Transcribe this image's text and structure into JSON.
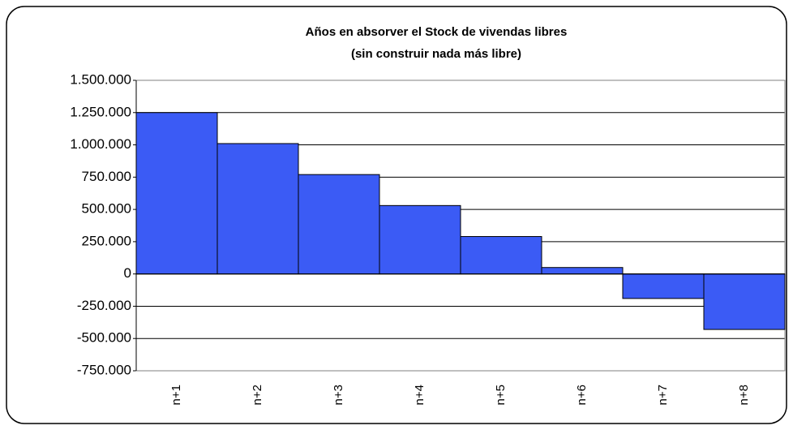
{
  "chart_data": {
    "type": "bar",
    "title": "Años en absorver el Stock de vivendas libres",
    "subtitle": "(sin construir nada más libre)",
    "categories": [
      "n+1",
      "n+2",
      "n+3",
      "n+4",
      "n+5",
      "n+6",
      "n+7",
      "n+8"
    ],
    "values": [
      1250000,
      1010000,
      770000,
      530000,
      290000,
      50000,
      -190000,
      -430000
    ],
    "color": "#3b5bf5",
    "ylim": [
      -750000,
      1500000
    ],
    "yticks": [
      {
        "value": -750000,
        "label": "-750.000"
      },
      {
        "value": -500000,
        "label": "-500.000"
      },
      {
        "value": -250000,
        "label": "-250.000"
      },
      0,
      {
        "value": 250000,
        "label": "250.000"
      },
      {
        "value": 500000,
        "label": "500.000"
      },
      {
        "value": 750000,
        "label": "750.000"
      },
      {
        "value": 1000000,
        "label": "1.000.000"
      },
      {
        "value": 1250000,
        "label": "1.250.000"
      },
      {
        "value": 1500000,
        "label": "1.500.000"
      }
    ],
    "grid": true
  }
}
